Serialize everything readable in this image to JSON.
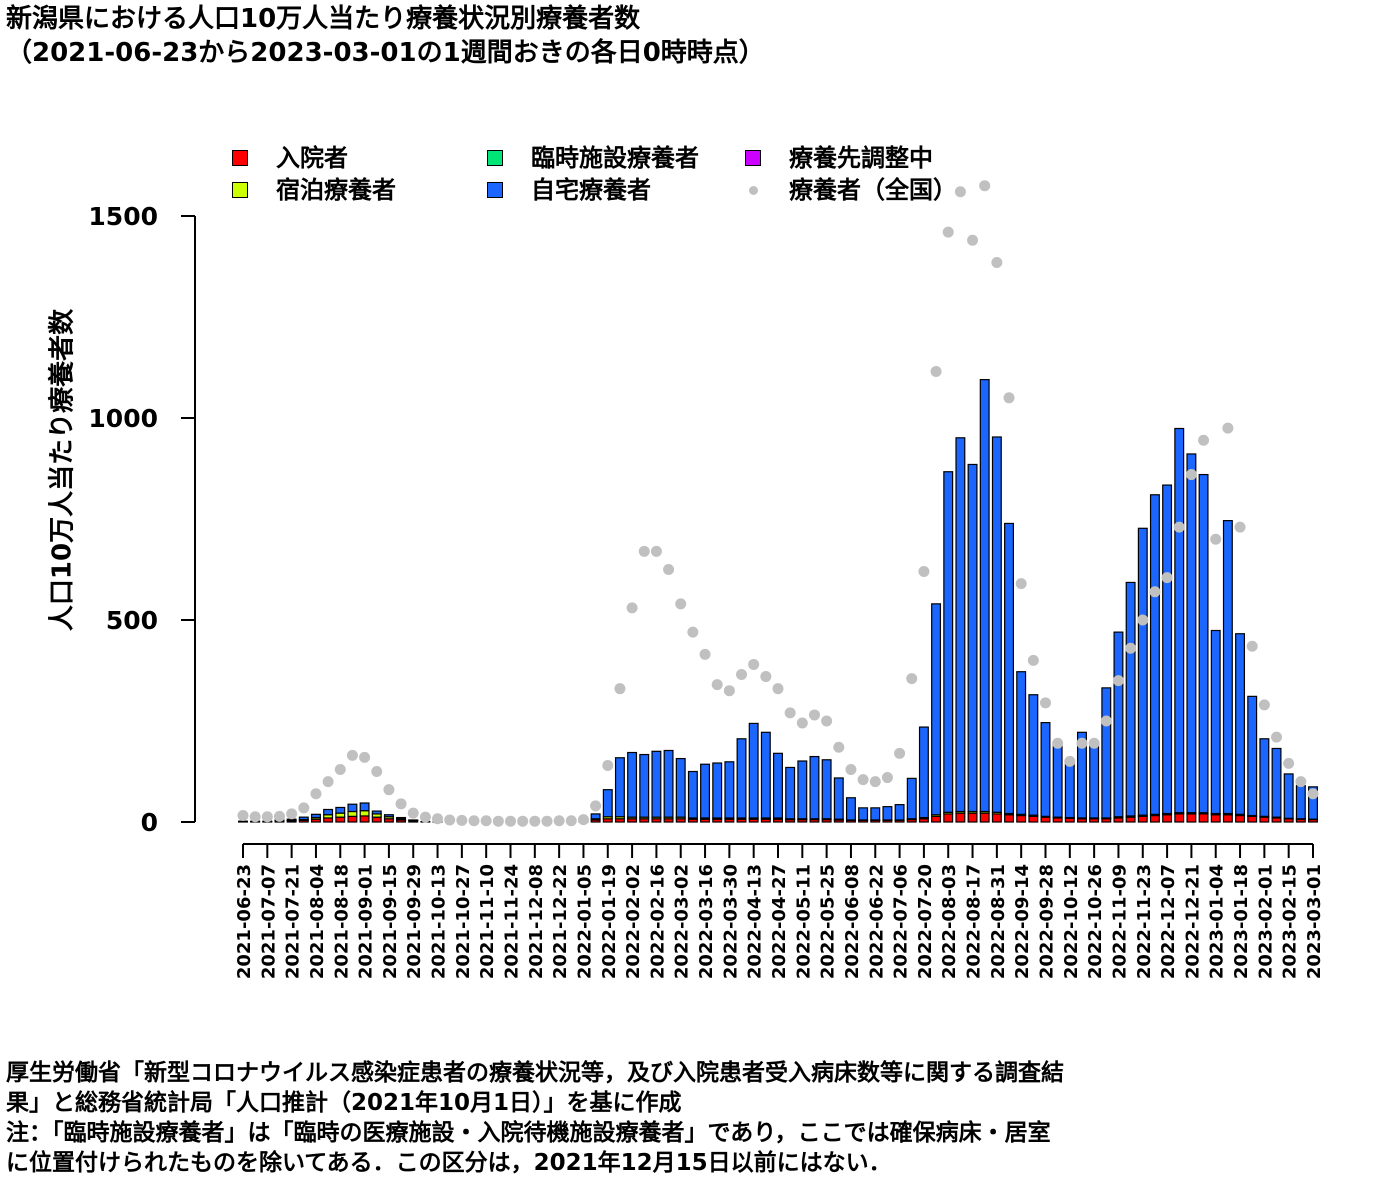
{
  "title": {
    "line1": "新潟県における人口10万人当たり療養状況別療養者数",
    "line2": "（2021-06-23から2023-03-01の1週間おきの各日0時時点）"
  },
  "legend": {
    "items": [
      {
        "label": "入院者",
        "color": "#ff0000",
        "kind": "box"
      },
      {
        "label": "臨時施設療養者",
        "color": "#00e676",
        "kind": "box"
      },
      {
        "label": "療養先調整中",
        "color": "#cc00ff",
        "kind": "box"
      },
      {
        "label": "宿泊療養者",
        "color": "#ccff00",
        "kind": "box"
      },
      {
        "label": "自宅療養者",
        "color": "#1a66ff",
        "kind": "box"
      },
      {
        "label": "療養者（全国）",
        "color": "#c0c0c0",
        "kind": "dot"
      }
    ]
  },
  "notes": {
    "line1": "厚生労働省「新型コロナウイルス感染症患者の療養状況等，及び入院患者受入病床数等に関する調査結",
    "line2": "果」と総務省統計局「人口推計（2021年10月1日）」を基に作成",
    "line3": "注：「臨時施設療養者」は「臨時の医療施設・入院待機施設療養者」であり，ここでは確保病床・居室",
    "line4": "に位置付けられたものを除いてある．この区分は，2021年12月15日以前にはない．"
  },
  "chart_data": {
    "type": "bar",
    "stacked": true,
    "ylabel": "人口10万人当たり療養者数",
    "ylim": [
      0,
      1500
    ],
    "yticks": [
      0,
      500,
      1000,
      1500
    ],
    "x": [
      "2021-06-23",
      "2021-06-30",
      "2021-07-07",
      "2021-07-14",
      "2021-07-21",
      "2021-07-28",
      "2021-08-04",
      "2021-08-11",
      "2021-08-18",
      "2021-08-25",
      "2021-09-01",
      "2021-09-08",
      "2021-09-15",
      "2021-09-22",
      "2021-09-29",
      "2021-10-06",
      "2021-10-13",
      "2021-10-20",
      "2021-10-27",
      "2021-11-03",
      "2021-11-10",
      "2021-11-17",
      "2021-11-24",
      "2021-12-01",
      "2021-12-08",
      "2021-12-15",
      "2021-12-22",
      "2021-12-29",
      "2022-01-05",
      "2022-01-12",
      "2022-01-19",
      "2022-01-26",
      "2022-02-02",
      "2022-02-09",
      "2022-02-16",
      "2022-02-23",
      "2022-03-02",
      "2022-03-09",
      "2022-03-16",
      "2022-03-23",
      "2022-03-30",
      "2022-04-06",
      "2022-04-13",
      "2022-04-20",
      "2022-04-27",
      "2022-05-04",
      "2022-05-11",
      "2022-05-18",
      "2022-05-25",
      "2022-06-01",
      "2022-06-08",
      "2022-06-15",
      "2022-06-22",
      "2022-06-29",
      "2022-07-06",
      "2022-07-13",
      "2022-07-20",
      "2022-07-27",
      "2022-08-03",
      "2022-08-10",
      "2022-08-17",
      "2022-08-24",
      "2022-08-31",
      "2022-09-07",
      "2022-09-14",
      "2022-09-21",
      "2022-09-28",
      "2022-10-05",
      "2022-10-12",
      "2022-10-19",
      "2022-10-26",
      "2022-11-02",
      "2022-11-09",
      "2022-11-16",
      "2022-11-23",
      "2022-11-30",
      "2022-12-07",
      "2022-12-14",
      "2022-12-21",
      "2022-12-28",
      "2023-01-04",
      "2023-01-11",
      "2023-01-18",
      "2023-01-25",
      "2023-02-01",
      "2023-02-08",
      "2023-02-15",
      "2023-02-22",
      "2023-03-01"
    ],
    "xtick_labels": [
      "2021-06-23",
      "2021-07-07",
      "2021-07-21",
      "2021-08-04",
      "2021-08-18",
      "2021-09-01",
      "2021-09-15",
      "2021-09-29",
      "2021-10-13",
      "2021-10-27",
      "2021-11-10",
      "2021-11-24",
      "2021-12-08",
      "2021-12-22",
      "2022-01-05",
      "2022-01-19",
      "2022-02-02",
      "2022-02-16",
      "2022-03-02",
      "2022-03-16",
      "2022-03-30",
      "2022-04-13",
      "2022-04-27",
      "2022-05-11",
      "2022-05-25",
      "2022-06-08",
      "2022-06-22",
      "2022-07-06",
      "2022-07-20",
      "2022-08-03",
      "2022-08-17",
      "2022-08-31",
      "2022-09-14",
      "2022-09-28",
      "2022-10-12",
      "2022-10-26",
      "2022-11-09",
      "2022-11-23",
      "2022-12-07",
      "2022-12-21",
      "2023-01-04",
      "2023-01-18",
      "2023-02-01",
      "2023-02-15",
      "2023-03-01"
    ],
    "series": [
      {
        "name": "入院者",
        "color": "#ff0000",
        "values": [
          1,
          1,
          1,
          2,
          3,
          4,
          7,
          10,
          12,
          14,
          15,
          12,
          8,
          5,
          3,
          1,
          1,
          0,
          0,
          0,
          0,
          0,
          0,
          0,
          0,
          0,
          0,
          0,
          1,
          5,
          8,
          8,
          8,
          8,
          8,
          8,
          8,
          7,
          7,
          7,
          7,
          7,
          7,
          7,
          7,
          6,
          6,
          6,
          6,
          5,
          4,
          4,
          4,
          4,
          4,
          6,
          8,
          14,
          20,
          22,
          22,
          22,
          20,
          18,
          16,
          14,
          12,
          10,
          9,
          8,
          8,
          8,
          10,
          12,
          14,
          16,
          18,
          20,
          20,
          20,
          18,
          18,
          16,
          14,
          12,
          10,
          8,
          7,
          6
        ]
      },
      {
        "name": "臨時施設療養者",
        "color": "#00e676",
        "values": [
          0,
          0,
          0,
          0,
          0,
          0,
          0,
          0,
          0,
          0,
          0,
          0,
          0,
          0,
          0,
          0,
          0,
          0,
          0,
          0,
          0,
          0,
          0,
          0,
          0,
          0,
          0,
          0,
          0,
          0,
          0,
          0,
          0,
          0,
          0,
          0,
          0,
          0,
          0,
          0,
          0,
          0,
          0,
          0,
          0,
          0,
          0,
          0,
          0,
          0,
          0,
          0,
          0,
          0,
          0,
          0,
          0,
          0,
          0,
          0,
          0,
          0,
          0,
          0,
          0,
          0,
          0,
          0,
          0,
          0,
          0,
          0,
          0,
          0,
          0,
          0,
          0,
          0,
          0,
          0,
          0,
          0,
          0,
          0,
          0,
          0,
          0,
          0,
          0
        ]
      },
      {
        "name": "療養先調整中",
        "color": "#cc00ff",
        "values": [
          0,
          0,
          0,
          0,
          0,
          0,
          0,
          0,
          0,
          0,
          0,
          0,
          0,
          0,
          0,
          0,
          0,
          0,
          0,
          0,
          0,
          0,
          0,
          0,
          0,
          0,
          0,
          0,
          0,
          0,
          0,
          0,
          0,
          0,
          0,
          0,
          0,
          0,
          0,
          0,
          0,
          0,
          0,
          0,
          0,
          0,
          0,
          0,
          0,
          0,
          0,
          0,
          0,
          0,
          0,
          0,
          0,
          0,
          0,
          0,
          0,
          0,
          0,
          0,
          0,
          0,
          0,
          0,
          0,
          0,
          0,
          0,
          0,
          0,
          0,
          0,
          0,
          0,
          0,
          0,
          0,
          0,
          0,
          0,
          0,
          0,
          0,
          0,
          0
        ]
      },
      {
        "name": "宿泊療養者",
        "color": "#ccff00",
        "values": [
          0,
          0,
          0,
          1,
          1,
          2,
          4,
          8,
          10,
          12,
          13,
          8,
          5,
          3,
          1,
          0,
          0,
          0,
          0,
          0,
          0,
          0,
          0,
          0,
          0,
          0,
          0,
          0,
          0,
          3,
          5,
          5,
          4,
          4,
          4,
          4,
          4,
          3,
          3,
          3,
          3,
          3,
          3,
          3,
          3,
          2,
          2,
          2,
          2,
          2,
          1,
          1,
          1,
          1,
          1,
          2,
          3,
          4,
          4,
          4,
          4,
          4,
          4,
          3,
          3,
          3,
          2,
          2,
          2,
          2,
          2,
          2,
          3,
          3,
          3,
          3,
          3,
          3,
          3,
          3,
          3,
          3,
          3,
          2,
          2,
          2,
          1,
          1,
          1
        ]
      },
      {
        "name": "自宅療養者",
        "color": "#1a66ff",
        "values": [
          1,
          1,
          1,
          2,
          3,
          6,
          8,
          13,
          14,
          18,
          19,
          7,
          5,
          3,
          1,
          0,
          0,
          0,
          0,
          0,
          0,
          0,
          0,
          0,
          0,
          0,
          0,
          0,
          1,
          12,
          67,
          146,
          160,
          155,
          163,
          165,
          145,
          115,
          133,
          136,
          139,
          196,
          234,
          212,
          160,
          127,
          143,
          154,
          146,
          102,
          55,
          30,
          30,
          33,
          38,
          100,
          224,
          522,
          843,
          925,
          859,
          1069,
          929,
          718,
          353,
          298,
          232,
          178,
          133,
          212,
          185,
          322,
          457,
          578,
          710,
          791,
          813,
          951,
          888,
          837,
          453,
          725,
          447,
          295,
          192,
          170,
          110,
          82,
          80
        ]
      },
      {
        "name": "療養者（全国）",
        "color": "#c0c0c0",
        "kind": "point",
        "values": [
          16,
          13,
          13,
          14,
          20,
          35,
          70,
          100,
          130,
          165,
          160,
          125,
          80,
          45,
          22,
          12,
          8,
          5,
          4,
          3,
          3,
          2,
          2,
          2,
          2,
          2,
          3,
          3,
          6,
          40,
          140,
          330,
          530,
          670,
          670,
          625,
          540,
          470,
          415,
          340,
          325,
          365,
          390,
          360,
          330,
          270,
          245,
          265,
          250,
          185,
          130,
          105,
          100,
          110,
          170,
          355,
          620,
          1115,
          1460,
          1560,
          1440,
          1575,
          1385,
          1050,
          590,
          400,
          295,
          195,
          150,
          195,
          195,
          250,
          350,
          430,
          500,
          570,
          605,
          730,
          860,
          945,
          700,
          975,
          730,
          435,
          290,
          210,
          145,
          100,
          70
        ]
      }
    ]
  }
}
